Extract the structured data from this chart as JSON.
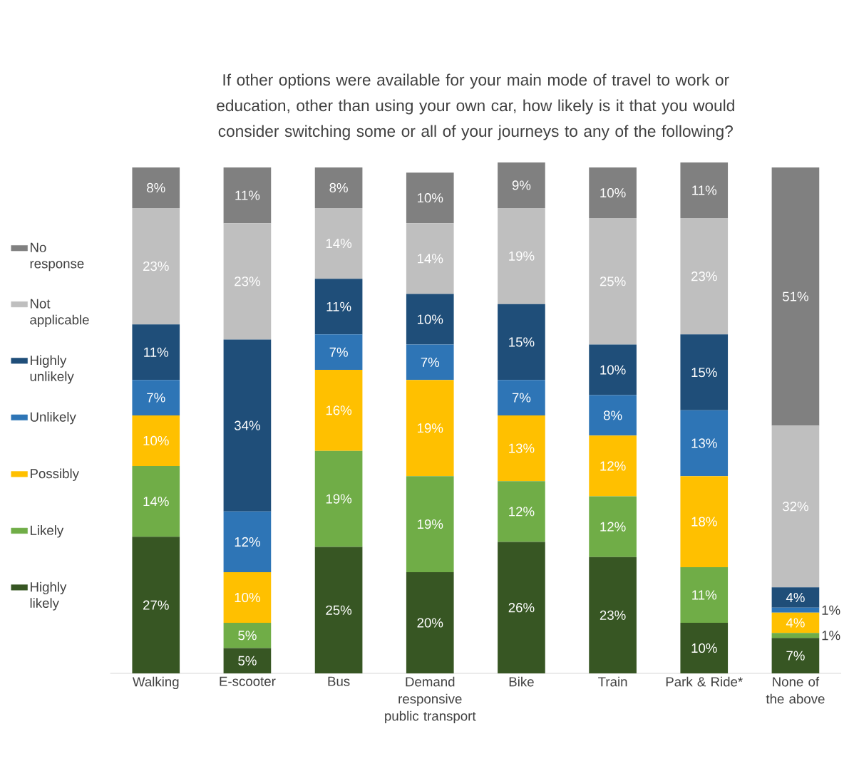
{
  "chart_data": {
    "type": "bar",
    "stacked": true,
    "legend": "left",
    "title": "If other options were available for your main mode of travel to work or education, other than using your own car, how likely is it that you would consider switching some or all of your journeys to any of the following?",
    "categories": [
      "Walking",
      "E-scooter",
      "Bus",
      "Demand responsive public transport",
      "Bike",
      "Train",
      "Park & Ride*",
      "None of the above"
    ],
    "series": [
      {
        "name": "Highly likely",
        "color": "#375623",
        "values": [
          27,
          5,
          25,
          20,
          26,
          23,
          10,
          7
        ],
        "value_labels": [
          "27%",
          "5%",
          "25%",
          "20%",
          "26%",
          "23%",
          "10%",
          "7%"
        ]
      },
      {
        "name": "Likely",
        "color": "#70ad47",
        "values": [
          14,
          5,
          19,
          19,
          12,
          12,
          11,
          1
        ],
        "value_labels": [
          "14%",
          "5%",
          "19%",
          "19%",
          "12%",
          "12%",
          "11%",
          "1%"
        ]
      },
      {
        "name": "Possibly",
        "color": "#ffc000",
        "values": [
          10,
          10,
          16,
          19,
          13,
          12,
          18,
          4
        ],
        "value_labels": [
          "10%",
          "10%",
          "16%",
          "19%",
          "13%",
          "12%",
          "18%",
          "4%"
        ]
      },
      {
        "name": "Unlikely",
        "color": "#2e75b6",
        "values": [
          7,
          12,
          7,
          7,
          7,
          8,
          13,
          1
        ],
        "value_labels": [
          "7%",
          "12%",
          "7%",
          "7%",
          "7%",
          "8%",
          "13%",
          "1%"
        ]
      },
      {
        "name": "Highly unlikely",
        "color": "#1f4e79",
        "values": [
          11,
          34,
          11,
          10,
          15,
          10,
          15,
          4
        ],
        "value_labels": [
          "11%",
          "34%",
          "11%",
          "10%",
          "15%",
          "10%",
          "15%",
          "4%"
        ]
      },
      {
        "name": "Not applicable",
        "color": "#bfbfbf",
        "values": [
          23,
          23,
          14,
          14,
          19,
          25,
          23,
          32
        ],
        "value_labels": [
          "23%",
          "23%",
          "14%",
          "14%",
          "19%",
          "25%",
          "23%",
          "32%"
        ]
      },
      {
        "name": "No response",
        "color": "#808080",
        "values": [
          8,
          11,
          8,
          10,
          9,
          10,
          11,
          51
        ],
        "value_labels": [
          "8%",
          "11%",
          "8%",
          "10%",
          "9%",
          "10%",
          "11%",
          "51%"
        ]
      }
    ]
  }
}
